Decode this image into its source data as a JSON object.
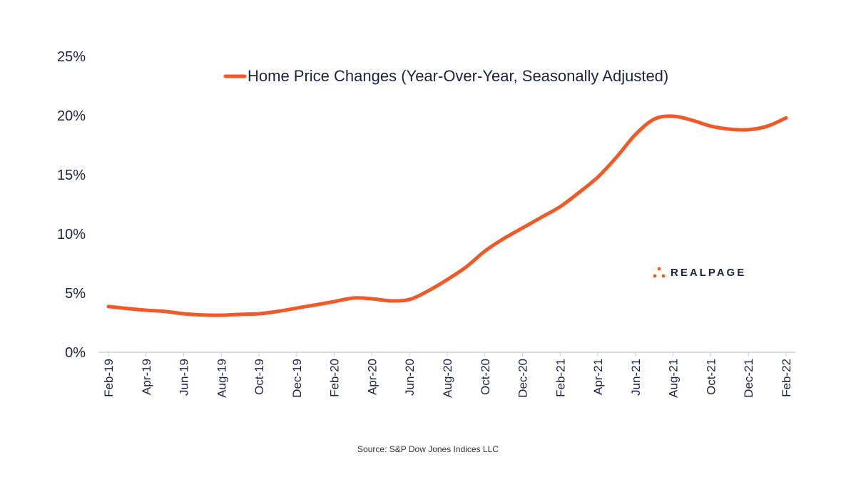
{
  "chart_data": {
    "type": "line",
    "title": "",
    "xlabel": "",
    "ylabel": "",
    "x": [
      "Feb-19",
      "Mar-19",
      "Apr-19",
      "May-19",
      "Jun-19",
      "Jul-19",
      "Aug-19",
      "Sep-19",
      "Oct-19",
      "Nov-19",
      "Dec-19",
      "Jan-20",
      "Feb-20",
      "Mar-20",
      "Apr-20",
      "May-20",
      "Jun-20",
      "Jul-20",
      "Aug-20",
      "Sep-20",
      "Oct-20",
      "Nov-20",
      "Dec-20",
      "Jan-21",
      "Feb-21",
      "Mar-21",
      "Apr-21",
      "May-21",
      "Jun-21",
      "Jul-21",
      "Aug-21",
      "Sep-21",
      "Oct-21",
      "Nov-21",
      "Dec-21",
      "Jan-22",
      "Feb-22"
    ],
    "x_tick_labels": [
      "Feb-19",
      "Apr-19",
      "Jun-19",
      "Aug-19",
      "Oct-19",
      "Dec-19",
      "Feb-20",
      "Apr-20",
      "Jun-20",
      "Aug-20",
      "Oct-20",
      "Dec-20",
      "Feb-21",
      "Apr-21",
      "Jun-21",
      "Aug-21",
      "Oct-21",
      "Dec-21",
      "Feb-22"
    ],
    "y_tick_labels": [
      "0%",
      "5%",
      "10%",
      "15%",
      "20%",
      "25%"
    ],
    "ylim": [
      0,
      25
    ],
    "grid": false,
    "legend_placement": "top-center",
    "series": [
      {
        "name": "Home Price Changes (Year-Over-Year, Seasonally Adjusted)",
        "color": "#f05a28",
        "values": [
          3.86,
          3.7,
          3.55,
          3.45,
          3.25,
          3.15,
          3.13,
          3.2,
          3.25,
          3.45,
          3.73,
          4.0,
          4.28,
          4.58,
          4.52,
          4.34,
          4.46,
          5.2,
          6.14,
          7.2,
          8.55,
          9.6,
          10.5,
          11.4,
          12.3,
          13.5,
          14.8,
          16.5,
          18.4,
          19.7,
          19.94,
          19.6,
          19.1,
          18.85,
          18.8,
          19.1,
          19.8
        ]
      }
    ]
  },
  "source": "Source: S&P Dow Jones Indices LLC",
  "logo": {
    "text": "REALPAGE",
    "color": "#f05a28"
  }
}
